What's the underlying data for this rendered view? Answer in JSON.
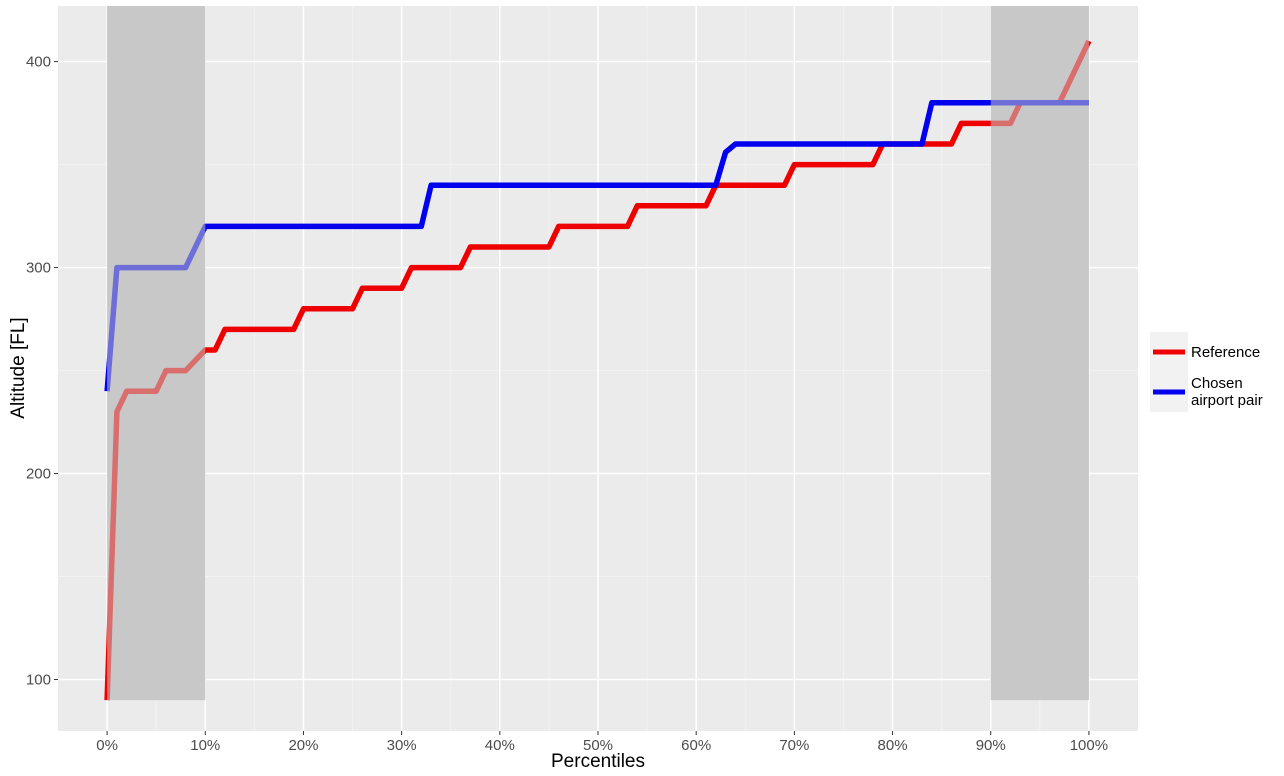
{
  "chart_data": {
    "type": "line",
    "xlabel": "Percentiles",
    "ylabel": "Altitude [FL]",
    "xlim": [
      -5,
      105
    ],
    "ylim": [
      75,
      427
    ],
    "x_ticks": [
      0,
      10,
      20,
      30,
      40,
      50,
      60,
      70,
      80,
      90,
      100
    ],
    "x_tick_labels": [
      "0%",
      "10%",
      "20%",
      "30%",
      "40%",
      "50%",
      "60%",
      "70%",
      "80%",
      "90%",
      "100%"
    ],
    "y_ticks": [
      100,
      200,
      300,
      400
    ],
    "y_tick_labels": [
      "100",
      "200",
      "300",
      "400"
    ],
    "grid": true,
    "legend_position": "right",
    "shaded_regions": [
      {
        "x_from": 0,
        "x_to": 10,
        "y_from": 90,
        "y_to": 427
      },
      {
        "x_from": 90,
        "x_to": 100,
        "y_from": 90,
        "y_to": 427
      }
    ],
    "series": [
      {
        "name": "Reference",
        "color": "#ee0000",
        "x": [
          0,
          1,
          2,
          5,
          6,
          8,
          10,
          11,
          12,
          19,
          20,
          25,
          26,
          30,
          31,
          36,
          37,
          45,
          46,
          53,
          54,
          61,
          62,
          69,
          70,
          78,
          79,
          86,
          87,
          92,
          93,
          97,
          98,
          100
        ],
        "y": [
          90,
          230,
          240,
          240,
          250,
          250,
          260,
          260,
          270,
          270,
          280,
          280,
          290,
          290,
          300,
          300,
          310,
          310,
          320,
          320,
          330,
          330,
          340,
          340,
          350,
          350,
          360,
          360,
          370,
          370,
          380,
          380,
          390,
          410
        ]
      },
      {
        "name": "Chosen airport pair",
        "color": "#0000ee",
        "x": [
          0,
          1,
          8,
          10,
          32,
          33,
          62,
          63,
          64,
          83,
          84,
          100
        ],
        "y": [
          240,
          300,
          300,
          320,
          320,
          340,
          340,
          356,
          360,
          360,
          380,
          380
        ]
      }
    ],
    "legend": {
      "entries": [
        {
          "label_lines": [
            "Reference"
          ],
          "color": "#ee0000"
        },
        {
          "label_lines": [
            "Chosen",
            "airport pair"
          ],
          "color": "#0000ee"
        }
      ]
    },
    "colors": {
      "panel_background": "#ebebeb",
      "grid_major": "#ffffff",
      "grid_minor": "#f2f2f2",
      "shade": "#c8c8c8"
    }
  }
}
